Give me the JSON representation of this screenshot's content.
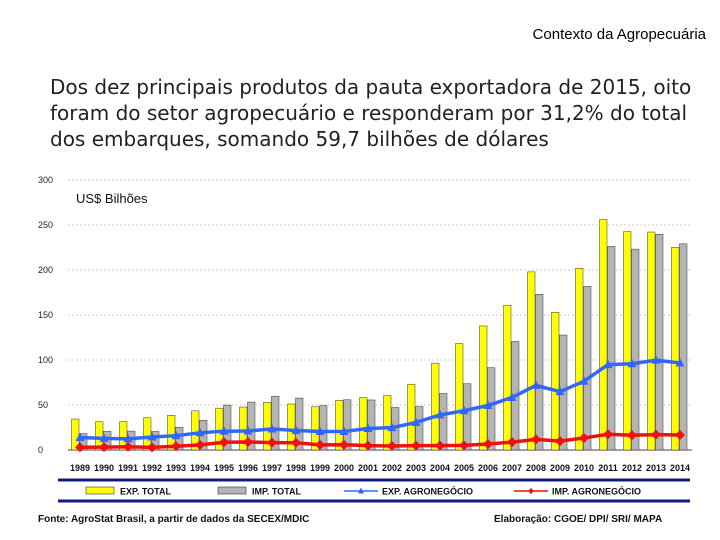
{
  "header": {
    "title": "Contexto da Agropecuária"
  },
  "intro": {
    "text": "Dos dez principais produtos da pauta exportadora de 2015, oito foram do setor agropecuário e responderam por 31,2% do total dos embarques, somando 59,7 bilhões de dólares"
  },
  "chart_data": {
    "type": "bar",
    "unit_label": "US$ Bilhões",
    "categories": [
      "1989",
      "1990",
      "1991",
      "1992",
      "1993",
      "1994",
      "1995",
      "1996",
      "1997",
      "1998",
      "1999",
      "2000",
      "2001",
      "2002",
      "2003",
      "2004",
      "2005",
      "2006",
      "2007",
      "2008",
      "2009",
      "2010",
      "2011",
      "2012",
      "2013",
      "2014"
    ],
    "ylim": [
      0,
      300
    ],
    "yticks": [
      0,
      50,
      100,
      150,
      200,
      250,
      300
    ],
    "series": [
      {
        "name": "EXP. TOTAL",
        "kind": "bar",
        "color": "#ffff00",
        "values": [
          34.4,
          31.4,
          31.6,
          35.8,
          38.6,
          43.5,
          46.5,
          47.7,
          53.0,
          51.1,
          48.0,
          55.1,
          58.2,
          60.4,
          73.1,
          96.5,
          118.3,
          137.8,
          160.6,
          197.9,
          153.0,
          201.9,
          256.0,
          242.6,
          242.2,
          225.1
        ]
      },
      {
        "name": "IMP. TOTAL",
        "kind": "bar",
        "color": "#b4b4b4",
        "values": [
          18.3,
          20.7,
          21.0,
          20.6,
          25.3,
          33.1,
          49.9,
          53.3,
          59.8,
          57.7,
          49.3,
          55.8,
          55.6,
          47.2,
          48.3,
          62.8,
          73.6,
          91.4,
          120.6,
          173.0,
          127.7,
          181.8,
          226.2,
          223.2,
          239.7,
          229.1
        ]
      },
      {
        "name": "EXP. AGRONEGÓCIO",
        "kind": "line",
        "color": "#3366ff",
        "values": [
          13.9,
          12.9,
          12.4,
          14.5,
          15.9,
          19.1,
          20.9,
          21.1,
          23.4,
          21.6,
          20.5,
          20.6,
          23.9,
          24.8,
          30.6,
          39.0,
          43.6,
          49.5,
          58.4,
          71.8,
          64.8,
          76.4,
          94.9,
          95.8,
          99.9,
          96.7
        ]
      },
      {
        "name": "IMP. AGRONEGÓCIO",
        "kind": "line",
        "color": "#ee1111",
        "values": [
          3.1,
          3.2,
          3.6,
          2.9,
          4.2,
          5.7,
          8.6,
          8.9,
          8.2,
          8.0,
          5.7,
          5.8,
          4.8,
          4.5,
          4.8,
          4.8,
          5.1,
          6.7,
          8.7,
          11.8,
          9.9,
          13.4,
          17.5,
          16.4,
          17.1,
          16.6
        ]
      }
    ]
  },
  "footer": {
    "source": "Fonte: AgroStat Brasil, a partir de dados da SECEX/MDIC",
    "credit": "Elaboração: CGOE/ DPI/ SRI/ MAPA"
  }
}
